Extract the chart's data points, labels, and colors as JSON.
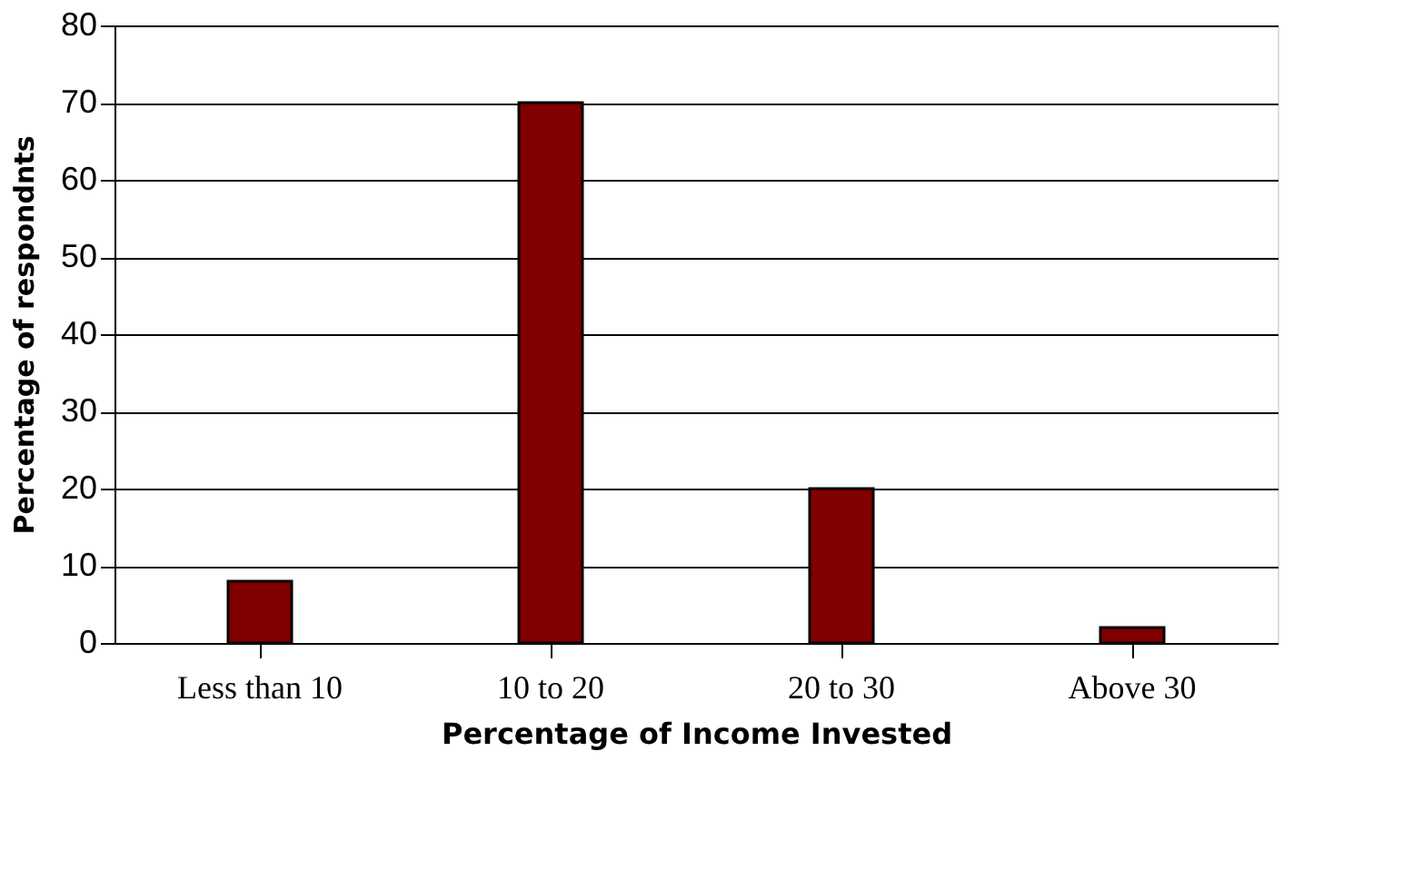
{
  "chart_data": {
    "type": "bar",
    "xlabel": "Percentage of Income Invested",
    "ylabel": "Percentage of respondnts",
    "categories": [
      "Less than 10",
      "10 to 20",
      "20 to 30",
      "Above 30"
    ],
    "values": [
      8,
      70,
      20,
      2
    ],
    "color": "#800000",
    "ylim": [
      0,
      80
    ],
    "yticks": [
      0,
      10,
      20,
      30,
      40,
      50,
      60,
      70,
      80
    ],
    "grid": "y"
  }
}
